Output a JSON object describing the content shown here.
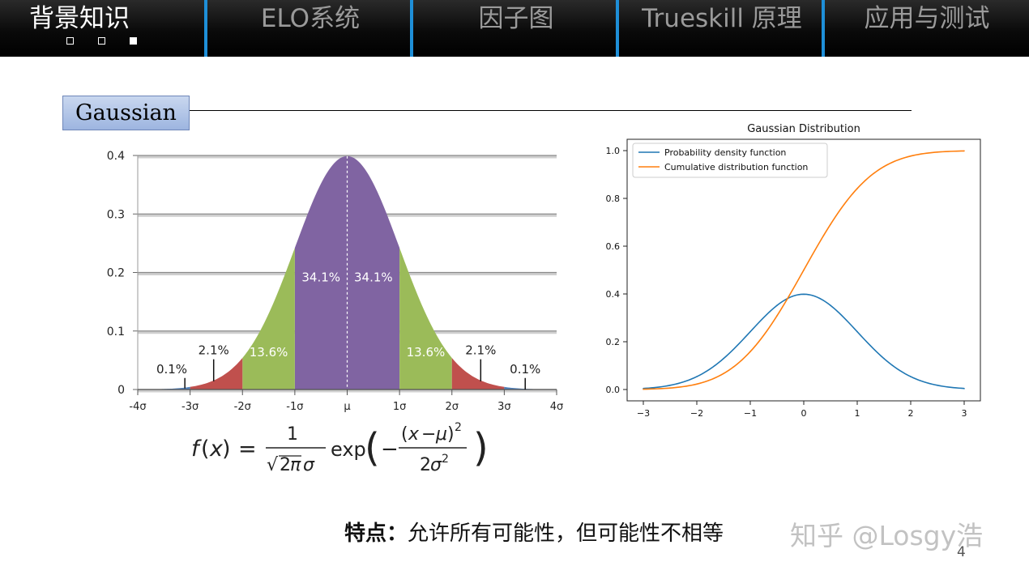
{
  "nav": {
    "tabs": [
      {
        "label": "背景知识",
        "active": true
      },
      {
        "label": "ELO系统",
        "active": false
      },
      {
        "label": "因子图",
        "active": false
      },
      {
        "label": "Trueskill 原理",
        "active": false
      },
      {
        "label": "应用与测试",
        "active": false
      }
    ],
    "active_color": "#ffffff",
    "inactive_color": "#9a9a9a",
    "separator_color": "#1e8fd8",
    "progress_dots": [
      false,
      false,
      true
    ]
  },
  "section": {
    "title": "Gaussian"
  },
  "chart_data": [
    {
      "type": "area",
      "yticks": [
        "0",
        "0.1",
        "0.2",
        "0.3",
        "0.4"
      ],
      "xticks": [
        "-4σ",
        "-3σ",
        "-2σ",
        "-1σ",
        "μ",
        "1σ",
        "2σ",
        "3σ",
        "4σ"
      ],
      "ylim": [
        0,
        0.4
      ],
      "xlim": [
        -4,
        4
      ],
      "grid": true,
      "regions": [
        {
          "from": -1,
          "to": 0,
          "label": "34.1%",
          "color": "#8064a2"
        },
        {
          "from": 0,
          "to": 1,
          "label": "34.1%",
          "color": "#8064a2"
        },
        {
          "from": -2,
          "to": -1,
          "label": "13.6%",
          "color": "#9bbb59"
        },
        {
          "from": 1,
          "to": 2,
          "label": "13.6%",
          "color": "#9bbb59"
        },
        {
          "from": -3,
          "to": -2,
          "label": "2.1%",
          "color": "#c0504d"
        },
        {
          "from": 2,
          "to": 3,
          "label": "2.1%",
          "color": "#c0504d"
        },
        {
          "from": -4,
          "to": -3,
          "label": "0.1%",
          "color": "#4f81bd"
        },
        {
          "from": 3,
          "to": 4,
          "label": "0.1%",
          "color": "#4f81bd"
        }
      ]
    },
    {
      "type": "line",
      "title": "Gaussian Distribution",
      "xlim": [
        -3,
        3
      ],
      "ylim": [
        0,
        1.0
      ],
      "xticks": [
        "−3",
        "−2",
        "−1",
        "0",
        "1",
        "2",
        "3"
      ],
      "yticks": [
        "0.0",
        "0.2",
        "0.4",
        "0.6",
        "0.8",
        "1.0"
      ],
      "legend_position": "top-left",
      "x": [
        -3,
        -2.5,
        -2,
        -1.5,
        -1,
        -0.5,
        0,
        0.5,
        1,
        1.5,
        2,
        2.5,
        3
      ],
      "series": [
        {
          "name": "Probability density function",
          "color": "#1f77b4",
          "values": [
            0.004,
            0.018,
            0.054,
            0.13,
            0.242,
            0.352,
            0.399,
            0.352,
            0.242,
            0.13,
            0.054,
            0.018,
            0.004
          ]
        },
        {
          "name": "Cumulative distribution function",
          "color": "#ff7f0e",
          "values": [
            0.001,
            0.006,
            0.023,
            0.067,
            0.159,
            0.309,
            0.5,
            0.691,
            0.841,
            0.933,
            0.977,
            0.994,
            0.999
          ]
        }
      ]
    }
  ],
  "bottom": {
    "bold_label": "特点：",
    "text": "允许所有可能性，但可能性不相等"
  },
  "watermark": "知乎 @Losgy浩",
  "page_number": "4"
}
